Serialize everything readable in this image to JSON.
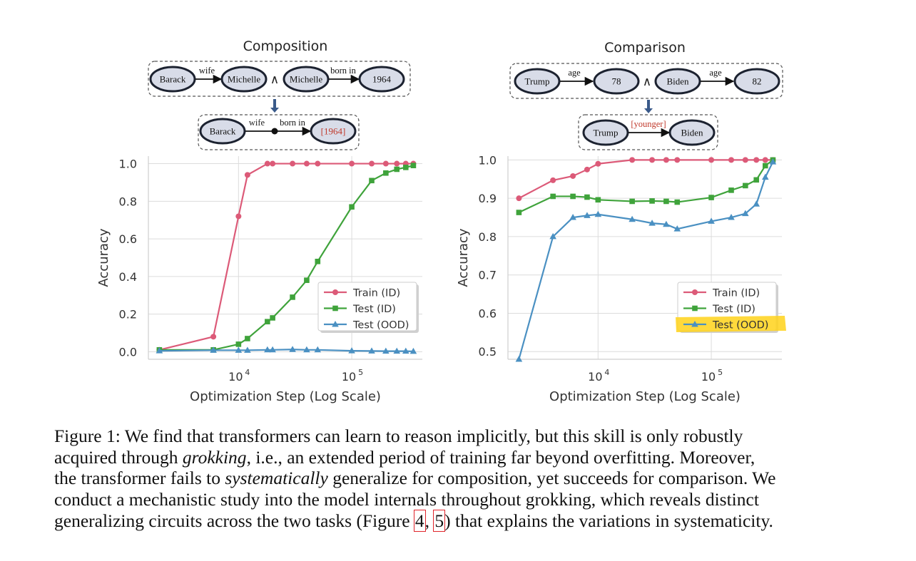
{
  "panels": [
    {
      "id": "composition",
      "title": "Composition",
      "top_row": {
        "left_fact": {
          "from": "Barack",
          "relation": "wife",
          "to": "Michelle"
        },
        "conjunction": "∧",
        "right_fact": {
          "from": "Michelle",
          "relation": "born in",
          "to": "1964"
        }
      },
      "bottom_row": {
        "from": "Barack",
        "relation_1": "wife",
        "relation_2": "born in",
        "to": "[1964]"
      }
    },
    {
      "id": "comparison",
      "title": "Comparison",
      "top_row": {
        "left_fact": {
          "from": "Trump",
          "relation": "age",
          "to": "78"
        },
        "conjunction": "∧",
        "right_fact": {
          "from": "Biden",
          "relation": "age",
          "to": "82"
        }
      },
      "bottom_row": {
        "from": "Trump",
        "relation": "[younger]",
        "to": "Biden"
      }
    }
  ],
  "colors": {
    "train": "#dc5a78",
    "test_id": "#3fa33b",
    "test_ood": "#4a90c2",
    "node_fill": "#d8dce8",
    "node_stroke": "#1c2230",
    "arrow_down": "#3a5a8a",
    "bracket_text": "#c0392b",
    "highlight": "#ffd21a"
  },
  "chart_data": [
    {
      "type": "line",
      "xlabel": "Optimization Step (Log Scale)",
      "ylabel": "Accuracy",
      "xscale": "log",
      "xlim": [
        1600,
        420000
      ],
      "ylim": [
        -0.04,
        1.04
      ],
      "yticks": [
        0.0,
        0.2,
        0.4,
        0.6,
        0.8,
        1.0
      ],
      "ytick_labels": [
        "0.0",
        "0.2",
        "0.4",
        "0.6",
        "0.8",
        "1.0"
      ],
      "xticks": [
        10000,
        100000
      ],
      "xtick_labels": [
        {
          "base": "10",
          "exp": "4"
        },
        {
          "base": "10",
          "exp": "5"
        }
      ],
      "grid": true,
      "legend_position": "lower-right",
      "series": [
        {
          "name": "Train (ID)",
          "marker": "circle",
          "color_key": "train",
          "x": [
            2000,
            6000,
            10000,
            12000,
            18000,
            20000,
            30000,
            40000,
            50000,
            100000,
            150000,
            200000,
            250000,
            300000,
            350000
          ],
          "y": [
            0.01,
            0.08,
            0.72,
            0.94,
            1.0,
            1.0,
            1.0,
            1.0,
            1.0,
            1.0,
            1.0,
            1.0,
            1.0,
            1.0,
            1.0
          ]
        },
        {
          "name": "Test (ID)",
          "marker": "square",
          "color_key": "test_id",
          "x": [
            2000,
            6000,
            10000,
            12000,
            18000,
            20000,
            30000,
            40000,
            50000,
            100000,
            150000,
            200000,
            250000,
            300000,
            350000
          ],
          "y": [
            0.01,
            0.01,
            0.04,
            0.07,
            0.16,
            0.18,
            0.29,
            0.38,
            0.48,
            0.77,
            0.91,
            0.95,
            0.97,
            0.98,
            0.99
          ]
        },
        {
          "name": "Test (OOD)",
          "marker": "triangle",
          "color_key": "test_ood",
          "x": [
            2000,
            6000,
            10000,
            12000,
            18000,
            20000,
            30000,
            40000,
            50000,
            100000,
            150000,
            200000,
            250000,
            300000,
            350000
          ],
          "y": [
            0.005,
            0.008,
            0.008,
            0.008,
            0.01,
            0.01,
            0.012,
            0.01,
            0.01,
            0.005,
            0.004,
            0.003,
            0.003,
            0.003,
            0.002
          ]
        }
      ]
    },
    {
      "type": "line",
      "xlabel": "Optimization Step (Log Scale)",
      "ylabel": "Accuracy",
      "xscale": "log",
      "xlim": [
        1600,
        420000
      ],
      "ylim": [
        0.48,
        1.01
      ],
      "yticks": [
        0.5,
        0.6,
        0.7,
        0.8,
        0.9,
        1.0
      ],
      "ytick_labels": [
        "0.5",
        "0.6",
        "0.7",
        "0.8",
        "0.9",
        "1.0"
      ],
      "xticks": [
        10000,
        100000
      ],
      "xtick_labels": [
        {
          "base": "10",
          "exp": "4"
        },
        {
          "base": "10",
          "exp": "5"
        }
      ],
      "grid": true,
      "legend_position": "lower-right",
      "legend_highlight": "Test (OOD)",
      "series": [
        {
          "name": "Train (ID)",
          "marker": "circle",
          "color_key": "train",
          "x": [
            2000,
            4000,
            6000,
            8000,
            10000,
            20000,
            30000,
            40000,
            50000,
            100000,
            150000,
            200000,
            250000,
            300000,
            350000
          ],
          "y": [
            0.9,
            0.947,
            0.958,
            0.975,
            0.99,
            1.0,
            1.0,
            1.0,
            1.0,
            1.0,
            1.0,
            1.0,
            1.0,
            1.0,
            1.0
          ]
        },
        {
          "name": "Test (ID)",
          "marker": "square",
          "color_key": "test_id",
          "x": [
            2000,
            4000,
            6000,
            8000,
            10000,
            20000,
            30000,
            40000,
            50000,
            100000,
            150000,
            200000,
            250000,
            300000,
            350000
          ],
          "y": [
            0.863,
            0.905,
            0.905,
            0.903,
            0.896,
            0.892,
            0.893,
            0.892,
            0.89,
            0.902,
            0.921,
            0.933,
            0.948,
            0.985,
            1.0
          ]
        },
        {
          "name": "Test (OOD)",
          "marker": "triangle",
          "color_key": "test_ood",
          "x": [
            2000,
            4000,
            6000,
            8000,
            10000,
            20000,
            30000,
            40000,
            50000,
            100000,
            150000,
            200000,
            250000,
            300000,
            350000
          ],
          "y": [
            0.48,
            0.8,
            0.85,
            0.855,
            0.858,
            0.845,
            0.835,
            0.832,
            0.82,
            0.84,
            0.85,
            0.86,
            0.885,
            0.955,
            0.995
          ]
        }
      ]
    }
  ],
  "caption": {
    "lines": [
      [
        {
          "t": "Figure 1:  We find that transformers can learn to reason implicitly, but this skill is only robustly"
        }
      ],
      [
        {
          "t": "acquired through "
        },
        {
          "t": "grokking",
          "i": true
        },
        {
          "t": ", i.e., an extended period of training far beyond overfitting.  Moreover,"
        }
      ],
      [
        {
          "t": "the transformer fails to "
        },
        {
          "t": "systematically",
          "i": true
        },
        {
          "t": " generalize for composition, yet succeeds for comparison.  We"
        }
      ],
      [
        {
          "t": "conduct a mechanistic study into the model internals throughout grokking, which reveals distinct"
        }
      ],
      [
        {
          "t": "generalizing circuits across the two tasks (Figure "
        },
        {
          "t": "4",
          "r": true
        },
        {
          "t": ", "
        },
        {
          "t": "5",
          "r": true
        },
        {
          "t": ") that explains the variations in systematicity."
        }
      ]
    ]
  }
}
